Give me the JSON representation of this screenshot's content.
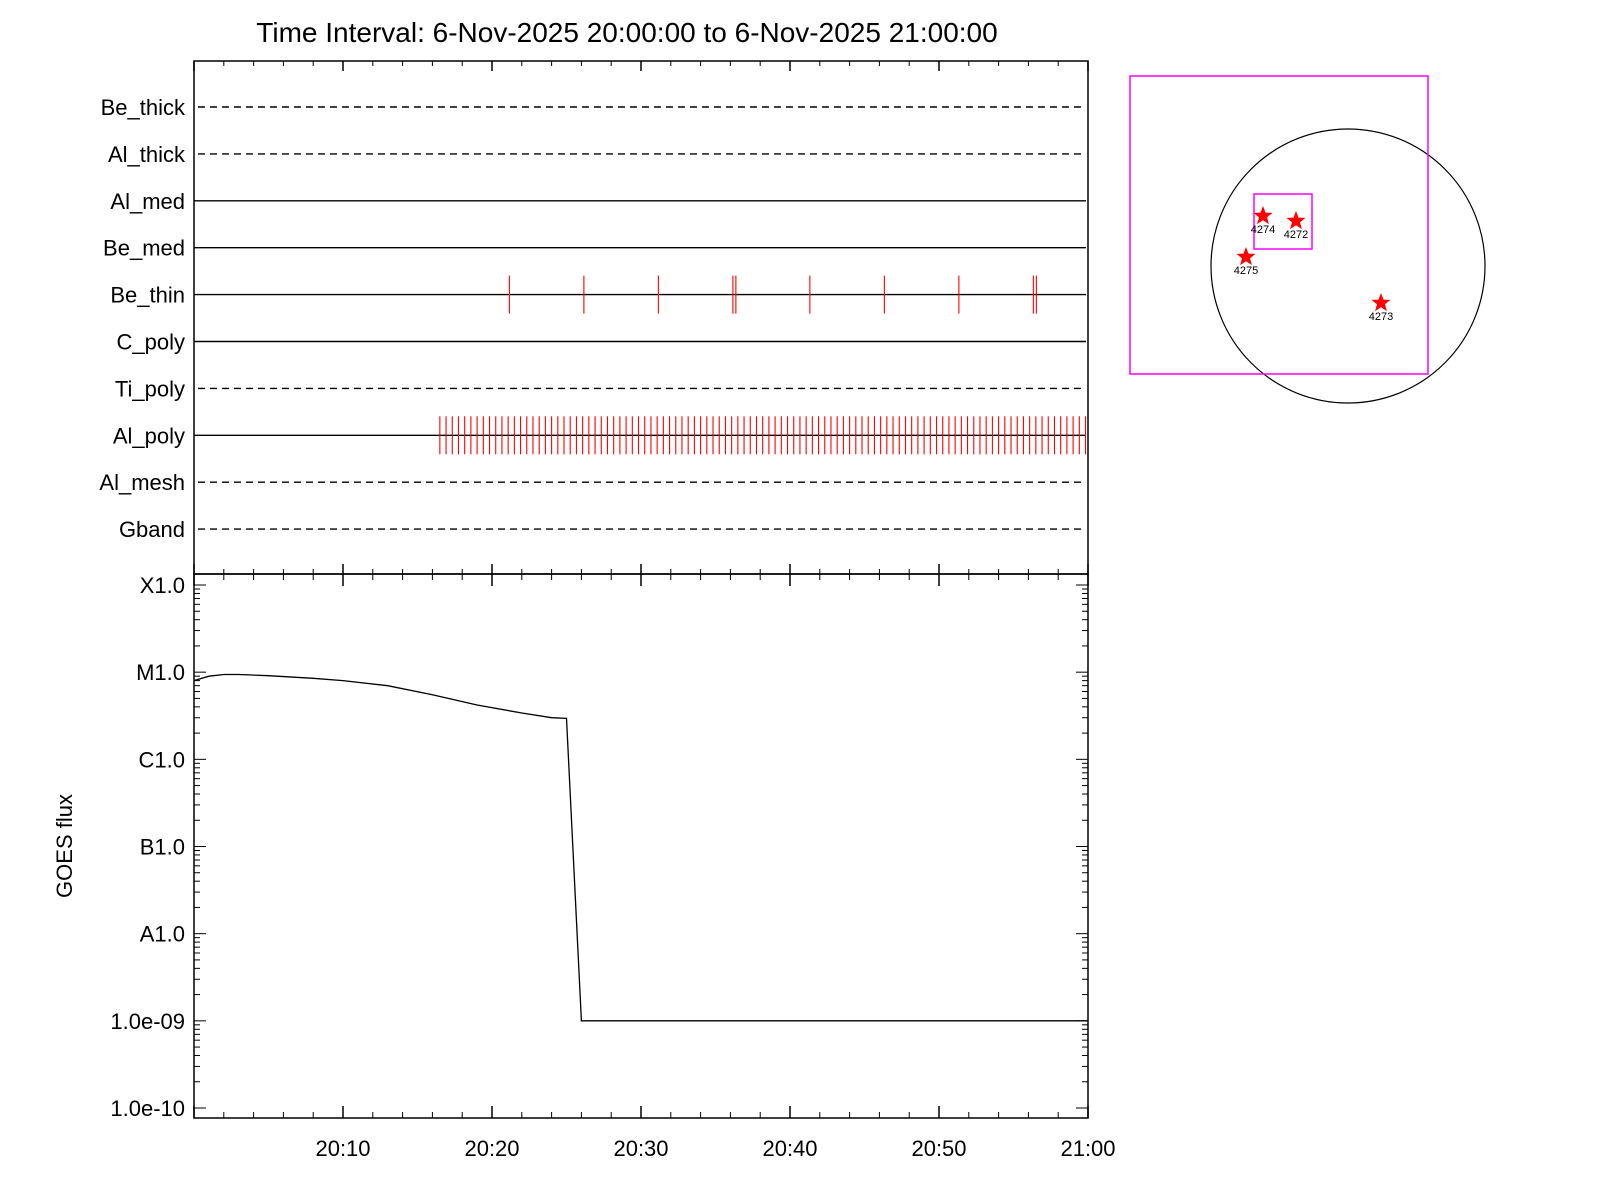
{
  "title": "Time Interval:  6-Nov-2025 20:00:00 to  6-Nov-2025 21:00:00",
  "colors": {
    "axis": "#000000",
    "event": "#ff0000",
    "fov": "#ff00ff",
    "disk": "#000000",
    "star": "#ff0000"
  },
  "chart_data": [
    {
      "type": "line",
      "panel": "attenuator-states",
      "x_range": [
        "20:00",
        "21:00"
      ],
      "categories": [
        "Be_thick",
        "Al_thick",
        "Al_med",
        "Be_med",
        "Be_thin",
        "C_poly",
        "Ti_poly",
        "Al_poly",
        "Al_mesh",
        "Gband"
      ],
      "line_style": [
        "dashed",
        "dashed",
        "solid",
        "solid",
        "solid",
        "solid",
        "dashed",
        "solid",
        "dashed",
        "dashed"
      ],
      "events": {
        "Be_thin": [
          "20:21:10",
          "20:26:10",
          "20:31:10",
          "20:36:10",
          "20:36:22",
          "20:41:20",
          "20:46:20",
          "20:51:20",
          "20:56:20",
          "20:56:32"
        ],
        "Al_poly": {
          "start": "20:16:30",
          "end": "20:59:50",
          "interval_seconds": 25
        }
      }
    },
    {
      "type": "line",
      "panel": "goes-flux",
      "ylabel": "GOES flux",
      "yscale": "log",
      "ylim": [
        1e-10,
        0.0001
      ],
      "yticks": [
        {
          "label": "X1.0",
          "value": 0.0001
        },
        {
          "label": "M1.0",
          "value": 1e-05
        },
        {
          "label": "C1.0",
          "value": 1e-06
        },
        {
          "label": "B1.0",
          "value": 1e-07
        },
        {
          "label": "A1.0",
          "value": 1e-08
        },
        {
          "label": "1.0e-09",
          "value": 1e-09
        },
        {
          "label": "1.0e-10",
          "value": 1e-10
        }
      ],
      "xticks": [
        "20:10",
        "20:20",
        "20:30",
        "20:40",
        "20:50",
        "21:00"
      ],
      "series": [
        {
          "x": [
            "20:00:00",
            "20:01:00",
            "20:02:00",
            "20:03:00",
            "20:05:00",
            "20:08:00",
            "20:10:00",
            "20:13:00",
            "20:16:00",
            "20:19:00",
            "20:22:00",
            "20:24:00",
            "20:25:00",
            "20:26:00",
            "20:30:00",
            "20:40:00",
            "20:50:00",
            "21:00:00"
          ],
          "y": [
            8e-06,
            9e-06,
            9.4e-06,
            9.4e-06,
            9.1e-06,
            8.5e-06,
            8e-06,
            7e-06,
            5.5e-06,
            4.2e-06,
            3.4e-06,
            3e-06,
            2.95e-06,
            1e-09,
            1e-09,
            1e-09,
            1e-09,
            1e-09
          ]
        }
      ]
    }
  ],
  "context_map": {
    "active_regions": [
      "4274",
      "4272",
      "4275",
      "4273"
    ]
  }
}
